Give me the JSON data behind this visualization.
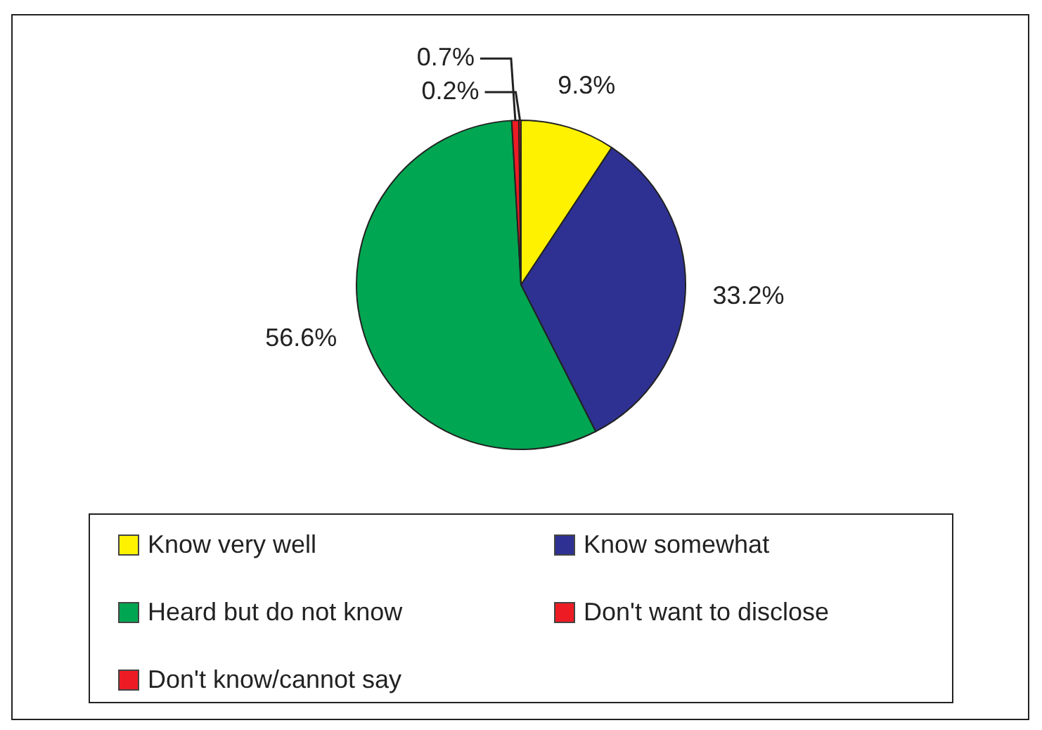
{
  "chart_data": {
    "type": "pie",
    "categories": [
      "Know very well",
      "Know somewhat",
      "Heard but do not know",
      "Don't want to disclose",
      "Don't know/cannot say"
    ],
    "values": [
      9.3,
      33.2,
      56.6,
      0.7,
      0.2
    ],
    "value_labels": [
      "9.3%",
      "33.2%",
      "56.6%",
      "0.7%",
      "0.2%"
    ],
    "colors": [
      "#fff200",
      "#2e3192",
      "#00a651",
      "#ed1c24",
      "#ed1c24"
    ],
    "legend": "bottom"
  }
}
